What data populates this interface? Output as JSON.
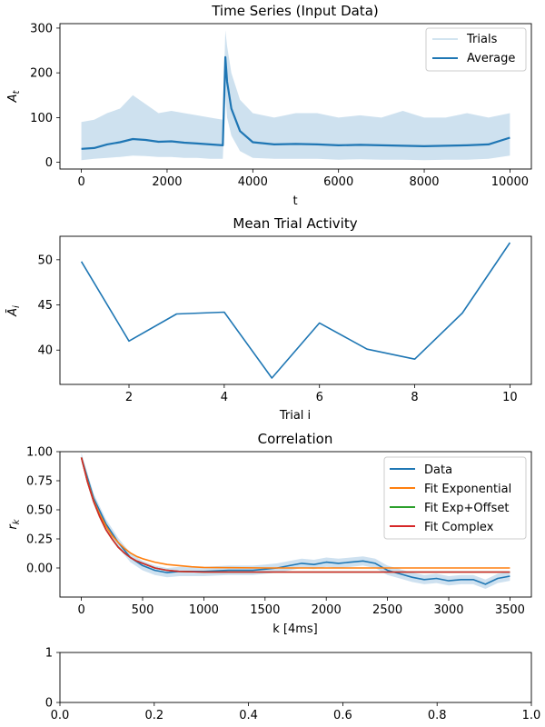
{
  "colors": {
    "blue": "#1f77b4",
    "orange": "#ff7f0e",
    "green": "#2ca02c",
    "red": "#d62728",
    "trial_band": "#aecde6"
  },
  "chart_data": [
    {
      "id": "time-series",
      "type": "line",
      "title": "Time Series (Input Data)",
      "xlabel": "t",
      "ylabel": "A_t",
      "xlim": [
        -500,
        10500
      ],
      "ylim": [
        -15,
        310
      ],
      "xticks": [
        0,
        2000,
        4000,
        6000,
        8000,
        10000
      ],
      "yticks": [
        0,
        100,
        200,
        300
      ],
      "legend": {
        "placement": "top-right",
        "entries": [
          "Trials",
          "Average"
        ]
      },
      "series": [
        {
          "name": "Average",
          "x": [
            0,
            300,
            600,
            900,
            1200,
            1500,
            1800,
            2100,
            2400,
            2700,
            3000,
            3300,
            3360,
            3400,
            3500,
            3700,
            4000,
            4500,
            5000,
            5500,
            6000,
            6500,
            7000,
            7500,
            8000,
            8500,
            9000,
            9500,
            10000
          ],
          "y": [
            30,
            32,
            40,
            45,
            52,
            50,
            46,
            47,
            44,
            42,
            40,
            38,
            235,
            180,
            120,
            70,
            45,
            40,
            41,
            40,
            38,
            39,
            38,
            37,
            36,
            37,
            38,
            40,
            55
          ]
        },
        {
          "name": "Trials",
          "x": [
            0,
            300,
            600,
            900,
            1200,
            1500,
            1800,
            2100,
            2400,
            2700,
            3000,
            3300,
            3360,
            3400,
            3500,
            3700,
            4000,
            4500,
            5000,
            5500,
            6000,
            6500,
            7000,
            7500,
            8000,
            8500,
            9000,
            9500,
            10000
          ],
          "lower": [
            5,
            8,
            10,
            12,
            15,
            14,
            12,
            12,
            10,
            10,
            8,
            8,
            150,
            100,
            60,
            25,
            10,
            8,
            8,
            8,
            6,
            7,
            6,
            6,
            5,
            6,
            6,
            8,
            15
          ],
          "upper": [
            90,
            95,
            110,
            120,
            150,
            130,
            110,
            115,
            110,
            105,
            100,
            95,
            295,
            260,
            200,
            140,
            110,
            100,
            110,
            110,
            100,
            105,
            100,
            115,
            100,
            100,
            110,
            100,
            110
          ]
        }
      ]
    },
    {
      "id": "mean-trial-activity",
      "type": "line",
      "title": "Mean Trial Activity",
      "xlabel": "Trial i",
      "ylabel": "Ā_i",
      "xlim": [
        0.55,
        10.45
      ],
      "ylim": [
        36.2,
        52.6
      ],
      "xticks": [
        2,
        4,
        6,
        8,
        10
      ],
      "yticks": [
        40,
        45,
        50
      ],
      "series": [
        {
          "x": [
            1,
            2,
            3,
            4,
            5,
            6,
            7,
            8,
            9,
            10
          ],
          "y": [
            49.8,
            41.0,
            44.0,
            44.2,
            36.9,
            43.0,
            40.1,
            39.0,
            44.1,
            51.9
          ]
        }
      ]
    },
    {
      "id": "correlation",
      "type": "line",
      "title": "Correlation",
      "xlabel": "k [4ms]",
      "ylabel": "r_k",
      "xlim": [
        -175,
        3675
      ],
      "ylim": [
        -0.25,
        1.0
      ],
      "xticks": [
        0,
        500,
        1000,
        1500,
        2000,
        2500,
        3000,
        3500
      ],
      "yticks": [
        0.0,
        0.25,
        0.5,
        0.75,
        1.0
      ],
      "legend": {
        "placement": "top-right",
        "entries": [
          "Data",
          "Fit Exponential",
          "Fit Exp+Offset",
          "Fit Complex"
        ]
      },
      "series": [
        {
          "name": "Data",
          "x": [
            0,
            100,
            200,
            300,
            400,
            500,
            600,
            700,
            800,
            1000,
            1200,
            1400,
            1500,
            1600,
            1700,
            1800,
            1900,
            2000,
            2100,
            2200,
            2300,
            2400,
            2500,
            2600,
            2700,
            2800,
            2900,
            3000,
            3100,
            3200,
            3300,
            3400,
            3500
          ],
          "y": [
            0.95,
            0.6,
            0.38,
            0.22,
            0.09,
            0.02,
            -0.02,
            -0.04,
            -0.03,
            -0.03,
            -0.02,
            -0.02,
            -0.01,
            0.0,
            0.02,
            0.04,
            0.03,
            0.05,
            0.04,
            0.05,
            0.06,
            0.04,
            -0.02,
            -0.05,
            -0.08,
            -0.1,
            -0.09,
            -0.11,
            -0.1,
            -0.1,
            -0.14,
            -0.09,
            -0.07
          ],
          "band": 0.04
        },
        {
          "name": "Fit Exponential",
          "x": [
            0,
            50,
            100,
            150,
            200,
            250,
            300,
            350,
            400,
            450,
            500,
            600,
            700,
            800,
            900,
            1000,
            1200,
            1500,
            2000,
            2500,
            3000,
            3500
          ],
          "y": [
            0.95,
            0.75,
            0.58,
            0.46,
            0.36,
            0.28,
            0.22,
            0.17,
            0.13,
            0.1,
            0.08,
            0.05,
            0.03,
            0.02,
            0.01,
            0.005,
            0.002,
            0.0,
            0.0,
            0.0,
            0.0,
            0.0
          ]
        },
        {
          "name": "Fit Exp+Offset",
          "x": [
            0,
            50,
            100,
            150,
            200,
            250,
            300,
            350,
            400,
            450,
            500,
            600,
            700,
            800,
            1000,
            1200,
            1500,
            2000,
            2500,
            3000,
            3500
          ],
          "y": [
            0.95,
            0.74,
            0.57,
            0.44,
            0.33,
            0.25,
            0.18,
            0.13,
            0.09,
            0.06,
            0.04,
            0.0,
            -0.02,
            -0.03,
            -0.035,
            -0.035,
            -0.035,
            -0.035,
            -0.035,
            -0.035,
            -0.035
          ]
        },
        {
          "name": "Fit Complex",
          "x": [
            0,
            50,
            100,
            150,
            200,
            250,
            300,
            350,
            400,
            450,
            500,
            600,
            700,
            800,
            1000,
            1200,
            1500,
            2000,
            2500,
            3000,
            3500
          ],
          "y": [
            0.95,
            0.74,
            0.57,
            0.44,
            0.33,
            0.25,
            0.18,
            0.13,
            0.09,
            0.06,
            0.04,
            0.0,
            -0.02,
            -0.03,
            -0.035,
            -0.035,
            -0.035,
            -0.035,
            -0.035,
            -0.035,
            -0.035
          ]
        }
      ]
    },
    {
      "id": "empty-axes",
      "type": "line",
      "title": "",
      "xlabel": "",
      "ylabel": "",
      "xlim": [
        0.0,
        1.0
      ],
      "ylim": [
        0,
        1
      ],
      "xticks": [
        0.0,
        0.2,
        0.4,
        0.6,
        0.8,
        1.0
      ],
      "yticks": [
        0,
        1
      ],
      "series": []
    }
  ]
}
